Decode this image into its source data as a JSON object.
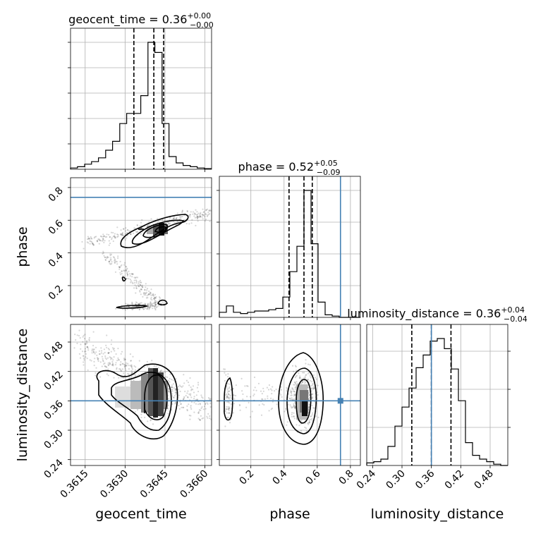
{
  "chart_data": {
    "type": "corner",
    "parameters": [
      "geocent_time",
      "phase",
      "luminosity_distance"
    ],
    "titles": {
      "geocent_time": {
        "name": "geocent_time",
        "median": "0.36",
        "plus": "+0.00",
        "minus": "−0.00"
      },
      "phase": {
        "name": "phase",
        "median": "0.52",
        "plus": "+0.05",
        "minus": "−0.09"
      },
      "luminosity_distance": {
        "name": "luminosity_distance",
        "median": "0.36",
        "plus": "+0.04",
        "minus": "−0.04"
      }
    },
    "ticks": {
      "geocent_time": [
        "0.3615",
        "0.3630",
        "0.3645",
        "0.3660"
      ],
      "phase": [
        "0.2",
        "0.4",
        "0.6",
        "0.8"
      ],
      "luminosity_distance": [
        "0.24",
        "0.30",
        "0.36",
        "0.42",
        "0.48"
      ]
    },
    "tick_values": {
      "geocent_time": [
        0.3615,
        0.363,
        0.3645,
        0.366
      ],
      "phase": [
        0.2,
        0.4,
        0.6,
        0.8
      ],
      "luminosity_distance": [
        0.24,
        0.3,
        0.36,
        0.42,
        0.48
      ]
    },
    "ranges": {
      "geocent_time": [
        0.36095,
        0.36625
      ],
      "phase": [
        0.01,
        0.86
      ],
      "luminosity_distance": [
        0.228,
        0.516
      ]
    },
    "truths": {
      "phase": 0.74,
      "luminosity_distance": 0.36
    },
    "quantiles": {
      "geocent_time": [
        0.36333,
        0.36408,
        0.36445
      ],
      "phase": [
        0.43,
        0.52,
        0.57
      ],
      "luminosity_distance": [
        0.32,
        0.36,
        0.4
      ]
    },
    "histograms": {
      "geocent_time": {
        "edges": [
          0.36095,
          0.36121,
          0.36148,
          0.36174,
          0.362,
          0.36227,
          0.36253,
          0.3628,
          0.36306,
          0.36333,
          0.36359,
          0.36386,
          0.36412,
          0.36439,
          0.36465,
          0.36492,
          0.36518,
          0.36545,
          0.36571,
          0.36598,
          0.36625
        ],
        "counts": [
          0.01,
          0.02,
          0.04,
          0.06,
          0.09,
          0.15,
          0.22,
          0.36,
          0.44,
          0.44,
          0.58,
          1.0,
          0.92,
          0.36,
          0.1,
          0.05,
          0.03,
          0.02,
          0.01,
          0.005
        ]
      },
      "phase": {
        "edges": [
          0.01,
          0.0525,
          0.095,
          0.1375,
          0.18,
          0.2225,
          0.265,
          0.3075,
          0.35,
          0.3925,
          0.435,
          0.4775,
          0.52,
          0.5625,
          0.605,
          0.6475,
          0.69,
          0.7325,
          0.775,
          0.8175,
          0.86
        ],
        "counts": [
          0.04,
          0.09,
          0.04,
          0.03,
          0.04,
          0.05,
          0.05,
          0.06,
          0.07,
          0.16,
          0.36,
          0.56,
          1.0,
          0.58,
          0.12,
          0.02,
          0.01,
          0.0,
          0.0,
          0.0
        ]
      },
      "luminosity_distance": {
        "edges": [
          0.228,
          0.2424,
          0.2568,
          0.2712,
          0.2856,
          0.3,
          0.3144,
          0.3288,
          0.3432,
          0.3576,
          0.372,
          0.3864,
          0.4008,
          0.4152,
          0.4296,
          0.444,
          0.4584,
          0.4728,
          0.4872,
          0.5016,
          0.516
        ],
        "counts": [
          0.02,
          0.03,
          0.05,
          0.15,
          0.31,
          0.46,
          0.61,
          0.77,
          0.87,
          0.98,
          1.0,
          0.92,
          0.76,
          0.51,
          0.18,
          0.08,
          0.05,
          0.03,
          0.01,
          0.0
        ]
      }
    }
  }
}
